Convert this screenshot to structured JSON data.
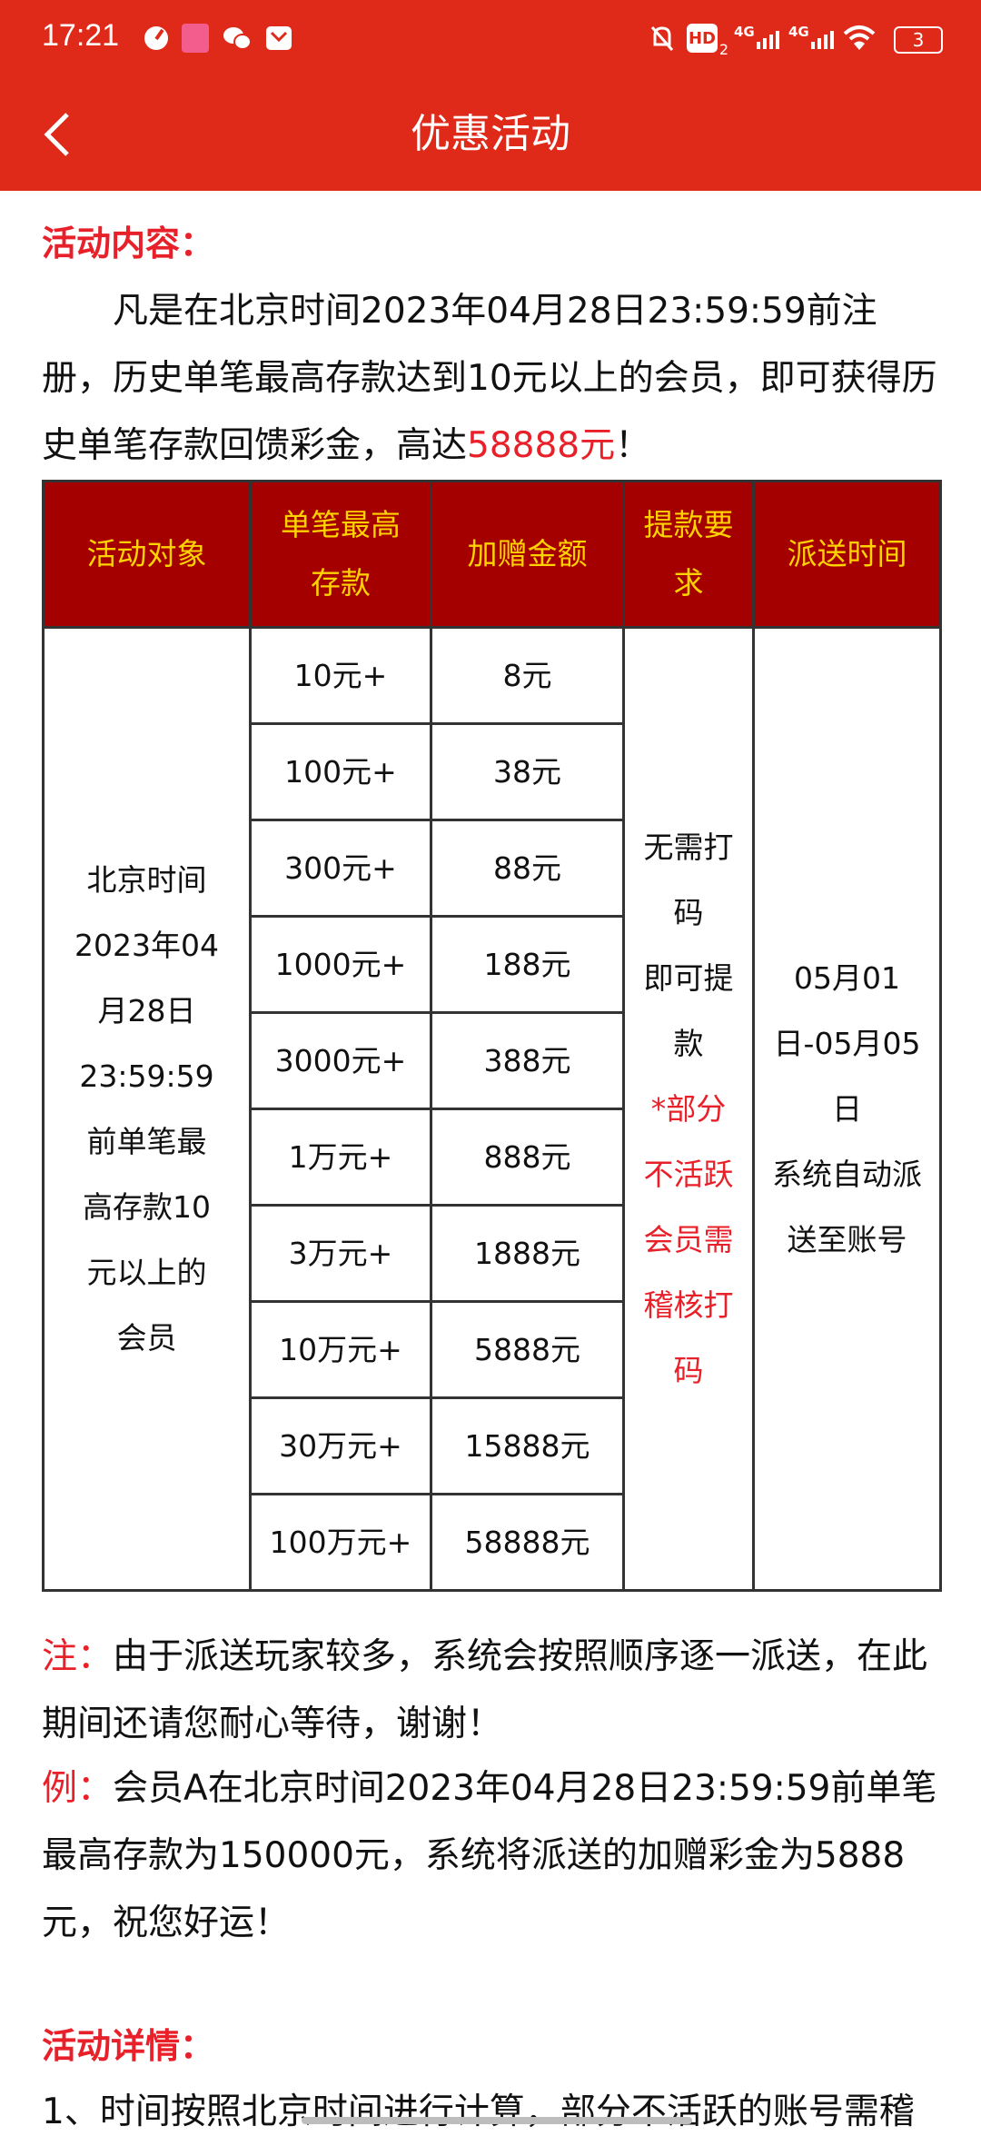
{
  "status_bar": {
    "time": "17:21",
    "left_icons": [
      "speed-icon",
      "bilibili-icon",
      "wechat-icon",
      "mail-icon"
    ],
    "right_icons": [
      "mute-bell-icon",
      "hd-icon",
      "4g-signal-icon",
      "4g-signal-icon",
      "wifi-icon",
      "battery-icon"
    ],
    "hd_label": "HD",
    "hd_sub": "2",
    "net1": "4G",
    "net2": "4G",
    "battery": "3"
  },
  "header": {
    "title": "优惠活动",
    "back_icon": "chevron-left-icon"
  },
  "colors": {
    "appbar": "#df2a1a",
    "heading": "#e8202a",
    "table_header_bg": "#a50000",
    "table_header_text": "#ffd200"
  },
  "content": {
    "heading1": "活动内容：",
    "intro_before": "凡是在北京时间2023年04月28日23:59:59前注册，历史单笔最高存款达到10元以上的会员，即可获得历史单笔存款回馈彩金，高达",
    "intro_highlight": "58888元",
    "intro_after": "！",
    "table": {
      "headers": [
        {
          "lines": [
            "活动对象"
          ]
        },
        {
          "lines": [
            "单笔最高",
            "存款"
          ]
        },
        {
          "lines": [
            "加赠金额"
          ]
        },
        {
          "lines": [
            "提款要",
            "求"
          ]
        },
        {
          "lines": [
            "派送时间"
          ]
        }
      ],
      "target_lines": [
        "北京时间",
        "2023年04",
        "月28日",
        "23:59:59",
        "前单笔最",
        "高存款10",
        "元以上的",
        "会员"
      ],
      "rows": [
        {
          "deposit": "10元+",
          "bonus": "8元"
        },
        {
          "deposit": "100元+",
          "bonus": "38元"
        },
        {
          "deposit": "300元+",
          "bonus": "88元"
        },
        {
          "deposit": "1000元+",
          "bonus": "188元"
        },
        {
          "deposit": "3000元+",
          "bonus": "388元"
        },
        {
          "deposit": "1万元+",
          "bonus": "888元"
        },
        {
          "deposit": "3万元+",
          "bonus": "1888元"
        },
        {
          "deposit": "10万元+",
          "bonus": "5888元"
        },
        {
          "deposit": "30万元+",
          "bonus": "15888元"
        },
        {
          "deposit": "100万元+",
          "bonus": "58888元"
        }
      ],
      "withdraw_lines": [
        "无需打",
        "码",
        "即可提",
        "款"
      ],
      "withdraw_note_lines": [
        "*部分",
        "不活跃",
        "会员需",
        "稽核打",
        "码"
      ],
      "dispatch_lines": [
        "05月01",
        "日-05月05",
        "日",
        "系统自动派",
        "送至账号"
      ]
    },
    "note_label": "注：",
    "note_text": "由于派送玩家较多，系统会按照顺序逐一派送，在此期间还请您耐心等待，谢谢！",
    "example_label": "例：",
    "example_text": "会员A在北京时间2023年04月28日23:59:59前单笔最高存款为150000元，系统将派送的加赠彩金为5888元，祝您好运！",
    "heading2": "活动详情：",
    "detail1": "1、时间按照北京时间进行计算，部分不活跃的账号需稽"
  }
}
